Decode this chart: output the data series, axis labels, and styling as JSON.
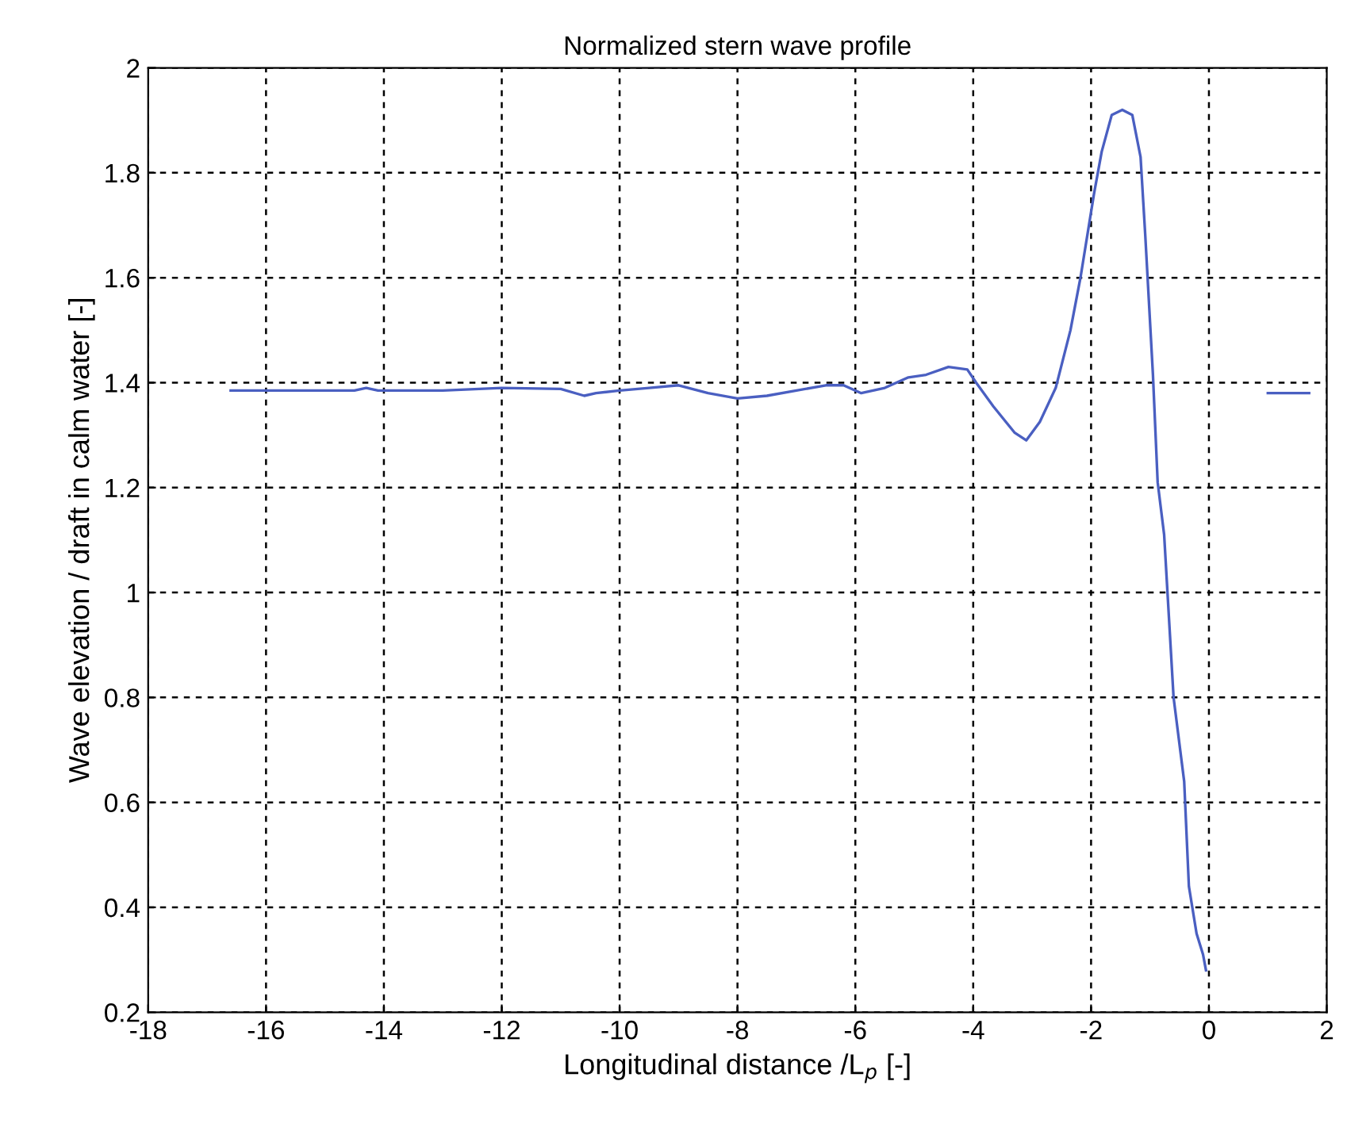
{
  "chart_data": {
    "type": "line",
    "title": "Normalized stern wave profile",
    "xlabel": "Longitudinal distance /L$_{p}$ [-]",
    "ylabel": "Wave elevation / draft in calm water [-]",
    "series": [
      {
        "color": "#4a5fc1",
        "x": [
          -16.6,
          -15.5,
          -14.5,
          -14.3,
          -14.1,
          -13,
          -12,
          -11,
          -10.6,
          -10.4,
          -10,
          -9.5,
          -9,
          -8.5,
          -8,
          -7.5,
          -7,
          -6.5,
          -6.2,
          -5.9,
          -5.5,
          -5.1,
          -4.8,
          -4.42,
          -4.1,
          -3.95,
          -3.66,
          -3.3,
          -3.1,
          -2.87,
          -2.6,
          -2.35,
          -2.18,
          -1.95,
          -1.82,
          -1.65,
          -1.47,
          -1.3,
          -1.16,
          -1.08,
          -0.95,
          -0.87,
          -0.76,
          -0.6,
          -0.42,
          -0.34,
          -0.21,
          -0.1,
          -0.05,
          null,
          1.0,
          1.7
        ],
        "values": [
          1.385,
          1.385,
          1.385,
          1.39,
          1.385,
          1.385,
          1.39,
          1.388,
          1.375,
          1.38,
          1.385,
          1.39,
          1.395,
          1.38,
          1.37,
          1.375,
          1.385,
          1.395,
          1.395,
          1.38,
          1.39,
          1.41,
          1.415,
          1.43,
          1.425,
          1.4,
          1.355,
          1.305,
          1.29,
          1.325,
          1.39,
          1.5,
          1.6,
          1.76,
          1.84,
          1.91,
          1.92,
          1.91,
          1.83,
          1.68,
          1.415,
          1.21,
          1.11,
          0.8,
          0.64,
          0.44,
          0.35,
          0.31,
          0.28,
          null,
          1.38,
          1.38
        ]
      }
    ],
    "xlim": [
      -18,
      2
    ],
    "xticks": [
      -18,
      -16,
      -14,
      -12,
      -10,
      -8,
      -6,
      -4,
      -2,
      0,
      2
    ],
    "ylim": [
      0.2,
      2
    ],
    "yticks": [
      0.2,
      0.4,
      0.6,
      0.8,
      1,
      1.2,
      1.4,
      1.6,
      1.8,
      2
    ],
    "grid": true,
    "line_style": "solid",
    "marker": "none"
  }
}
